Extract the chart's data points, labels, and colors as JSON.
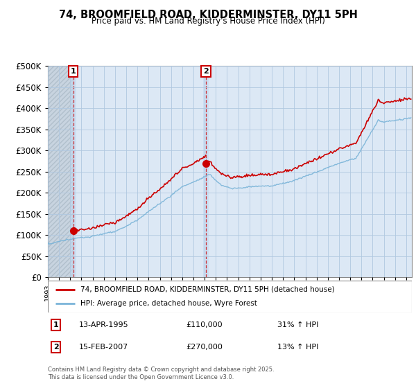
{
  "title": "74, BROOMFIELD ROAD, KIDDERMINSTER, DY11 5PH",
  "subtitle": "Price paid vs. HM Land Registry's House Price Index (HPI)",
  "ylim": [
    0,
    500000
  ],
  "yticks": [
    0,
    50000,
    100000,
    150000,
    200000,
    250000,
    300000,
    350000,
    400000,
    450000,
    500000
  ],
  "x_start_year": 1993,
  "x_end_year": 2025,
  "hpi_color": "#7ab4d8",
  "price_color": "#cc0000",
  "t1_year": 1995.28,
  "t1_price": 110000,
  "t2_year": 2007.12,
  "t2_price": 270000,
  "legend_house": "74, BROOMFIELD ROAD, KIDDERMINSTER, DY11 5PH (detached house)",
  "legend_hpi": "HPI: Average price, detached house, Wyre Forest",
  "table_row1": [
    "1",
    "13-APR-1995",
    "£110,000",
    "31% ↑ HPI"
  ],
  "table_row2": [
    "2",
    "15-FEB-2007",
    "£270,000",
    "13% ↑ HPI"
  ],
  "footer": "Contains HM Land Registry data © Crown copyright and database right 2025.\nThis data is licensed under the Open Government Licence v3.0.",
  "background_color": "#ffffff",
  "plot_bg_color": "#dce8f5",
  "grid_color": "#b0c8e0",
  "hatch_color": "#b0b8c8"
}
